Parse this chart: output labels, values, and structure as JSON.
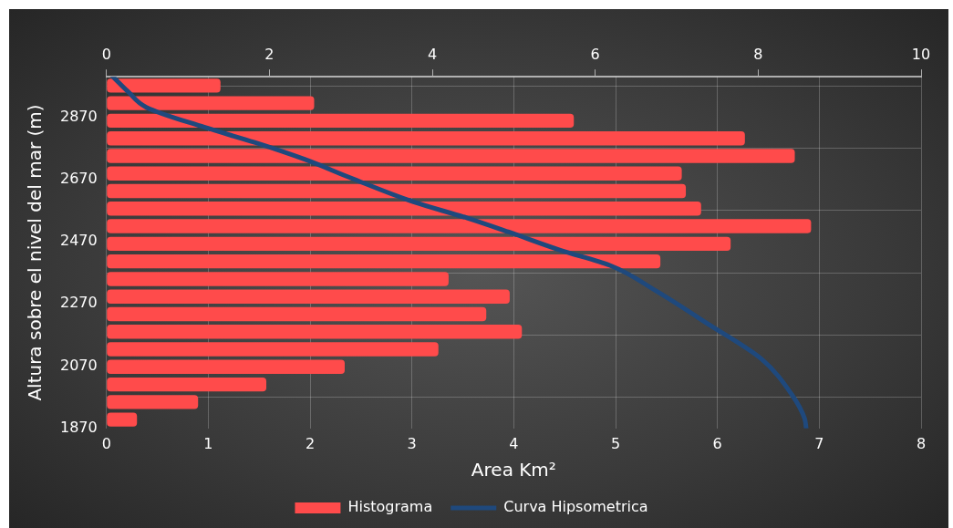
{
  "chart_data": {
    "type": "histogram",
    "orientation": "horizontal",
    "xlabel": "Area Km²",
    "ylabel": "Altura sobre el nivel del mar (m)",
    "xlim": [
      0,
      8
    ],
    "xticks": [
      0,
      1,
      2,
      3,
      4,
      5,
      6,
      7,
      8
    ],
    "x2lim": [
      0,
      10
    ],
    "x2ticks": [
      0,
      2,
      4,
      6,
      8,
      10
    ],
    "ylim": [
      1870,
      3000
    ],
    "yticks": [
      1870,
      2070,
      2270,
      2470,
      2670,
      2870
    ],
    "grid": true,
    "legend": "bottom",
    "series": [
      {
        "name": "Histograma",
        "color": "#ff4b4b",
        "bins": [
          1870,
          1926.5,
          1983,
          2039.5,
          2096,
          2152.5,
          2209,
          2265.5,
          2322,
          2378.5,
          2435,
          2491.5,
          2548,
          2604.5,
          2661,
          2717.5,
          2774,
          2830.5,
          2887,
          2943.5,
          3000
        ],
        "values": [
          0.3,
          0.9,
          1.57,
          2.34,
          3.26,
          4.08,
          3.73,
          3.96,
          3.36,
          5.44,
          6.13,
          6.92,
          5.84,
          5.69,
          5.65,
          6.76,
          6.27,
          4.59,
          2.04,
          1.12
        ]
      },
      {
        "name": "Curva Hipsometrica",
        "type": "line",
        "axis": "x2",
        "color": "#1f497d",
        "x": [
          3000,
          2951,
          2902,
          2838,
          2789,
          2734,
          2676,
          2598,
          2546,
          2501,
          2443,
          2394,
          2313,
          2203,
          2093,
          1980,
          1902,
          1870
        ],
        "values": [
          0.08,
          0.27,
          0.49,
          1.2,
          1.82,
          2.44,
          2.99,
          3.77,
          4.43,
          4.94,
          5.57,
          6.18,
          6.74,
          7.4,
          8.04,
          8.41,
          8.57,
          8.59
        ]
      }
    ]
  }
}
